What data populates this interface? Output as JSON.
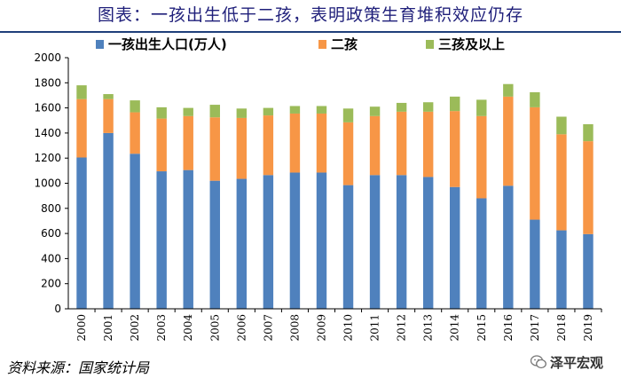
{
  "title": "图表：一孩出生低于二孩，表明政策生育堆积效应仍存",
  "source": "资料来源：国家统计局",
  "watermark": "泽平宏观",
  "colors": {
    "series1": "#4f81bd",
    "series2": "#f79646",
    "series3": "#9bbb59",
    "title": "#1f1f7a"
  },
  "chart_data": {
    "type": "bar",
    "stacked": true,
    "categories": [
      "2000",
      "2001",
      "2002",
      "2003",
      "2004",
      "2005",
      "2006",
      "2007",
      "2008",
      "2009",
      "2010",
      "2011",
      "2012",
      "2013",
      "2014",
      "2015",
      "2016",
      "2017",
      "2018",
      "2019"
    ],
    "series": [
      {
        "name": "一孩出生人口(万人)",
        "values": [
          1205,
          1400,
          1235,
          1095,
          1105,
          1020,
          1035,
          1065,
          1085,
          1085,
          985,
          1065,
          1065,
          1050,
          970,
          880,
          980,
          710,
          625,
          595
        ]
      },
      {
        "name": "二孩",
        "values": [
          465,
          270,
          330,
          420,
          430,
          505,
          485,
          475,
          470,
          470,
          500,
          470,
          505,
          520,
          605,
          655,
          710,
          895,
          765,
          740
        ]
      },
      {
        "name": "三孩及以上",
        "values": [
          110,
          40,
          95,
          90,
          65,
          100,
          75,
          60,
          60,
          60,
          110,
          75,
          70,
          75,
          115,
          130,
          100,
          120,
          140,
          135
        ]
      }
    ],
    "ylim": [
      0,
      2000
    ],
    "yticks": [
      "0",
      "200",
      "400",
      "600",
      "800",
      "1000",
      "1200",
      "1400",
      "1600",
      "1800",
      "2000"
    ],
    "xlabel": "",
    "ylabel": "",
    "legend": "top"
  }
}
